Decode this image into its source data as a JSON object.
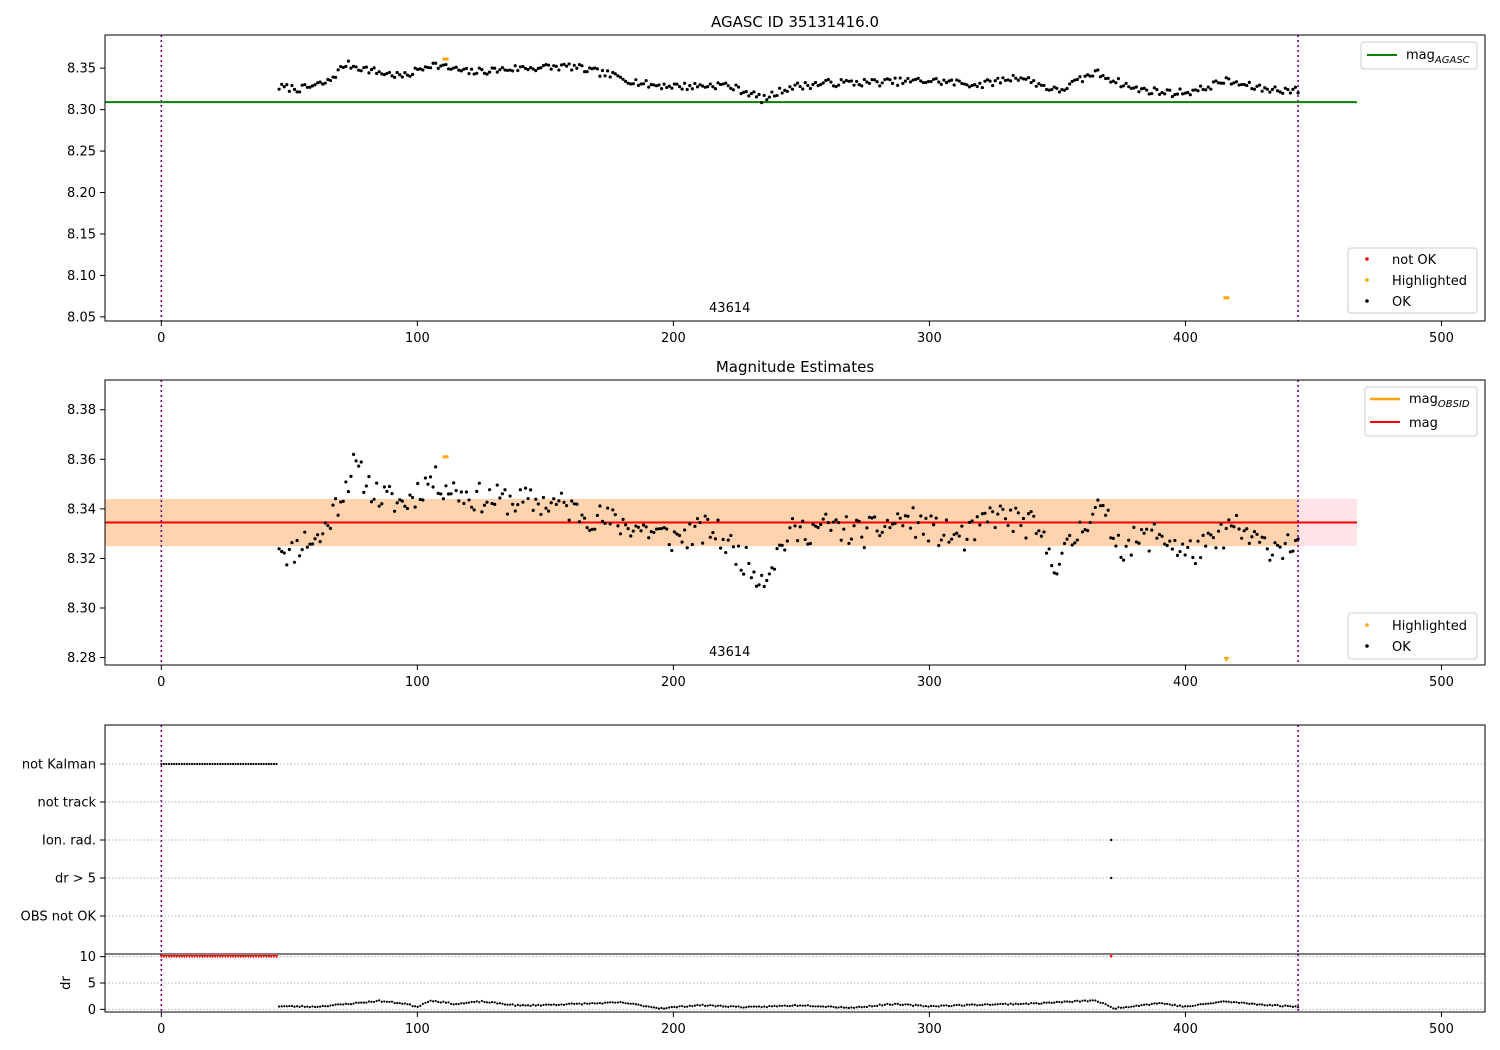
{
  "chart_data": [
    {
      "type": "scatter",
      "title": "AGASC ID 35131416.0",
      "xlim": [
        -22,
        517
      ],
      "ylim": [
        8.045,
        8.39
      ],
      "xticks": [
        "0",
        "100",
        "200",
        "300",
        "400",
        "500"
      ],
      "yticks": [
        "8.05",
        "8.10",
        "8.15",
        "8.20",
        "8.25",
        "8.30",
        "8.35"
      ],
      "obsid_label": "43614",
      "vlines": [
        0,
        444
      ],
      "mag_agasc": 8.309,
      "mag_agasc_xrange": [
        -22,
        467
      ],
      "legend_lines": [
        "mag_AGASC"
      ],
      "legend_line_main": "mag",
      "legend_line_sub": "AGASC",
      "legend_points": [
        "not OK",
        "Highlighted",
        "OK"
      ],
      "highlighted": [
        {
          "x": 111,
          "y": 8.361
        },
        {
          "x": 416,
          "y": 8.073
        }
      ],
      "ok_series": {
        "x_start": 46,
        "x_end": 444,
        "n": 398,
        "anchors": [
          [
            46,
            8.327
          ],
          [
            55,
            8.325
          ],
          [
            65,
            8.333
          ],
          [
            72,
            8.355
          ],
          [
            85,
            8.345
          ],
          [
            95,
            8.34
          ],
          [
            105,
            8.355
          ],
          [
            120,
            8.345
          ],
          [
            140,
            8.35
          ],
          [
            160,
            8.352
          ],
          [
            175,
            8.342
          ],
          [
            190,
            8.33
          ],
          [
            205,
            8.328
          ],
          [
            220,
            8.33
          ],
          [
            230,
            8.32
          ],
          [
            235,
            8.312
          ],
          [
            245,
            8.327
          ],
          [
            260,
            8.332
          ],
          [
            280,
            8.333
          ],
          [
            300,
            8.335
          ],
          [
            320,
            8.33
          ],
          [
            335,
            8.34
          ],
          [
            350,
            8.322
          ],
          [
            365,
            8.345
          ],
          [
            380,
            8.325
          ],
          [
            395,
            8.32
          ],
          [
            405,
            8.323
          ],
          [
            415,
            8.335
          ],
          [
            430,
            8.325
          ],
          [
            444,
            8.323
          ]
        ]
      }
    },
    {
      "type": "scatter",
      "title": "Magnitude Estimates",
      "xlim": [
        -22,
        517
      ],
      "ylim": [
        8.277,
        8.392
      ],
      "xticks": [
        "0",
        "100",
        "200",
        "300",
        "400",
        "500"
      ],
      "yticks": [
        "8.28",
        "8.30",
        "8.32",
        "8.34",
        "8.36",
        "8.38"
      ],
      "obsid_label": "43614",
      "vlines": [
        0,
        444
      ],
      "mag": 8.3345,
      "mag_band": [
        8.325,
        8.344
      ],
      "mag_obsid_band": [
        8.325,
        8.344
      ],
      "band_xrange": [
        -22,
        467
      ],
      "legend_lines": [
        "mag_OBSID",
        "mag"
      ],
      "legend_line_main": "mag",
      "legend_line_sub": "OBSID",
      "legend_line_mag": "mag",
      "legend_points": [
        "Highlighted",
        "OK"
      ],
      "highlighted": [
        {
          "x": 111,
          "y": 8.361
        }
      ],
      "ok_series": {
        "x_start": 46,
        "x_end": 444,
        "n": 398,
        "anchors": [
          [
            46,
            8.327
          ],
          [
            50,
            8.321
          ],
          [
            55,
            8.327
          ],
          [
            62,
            8.328
          ],
          [
            70,
            8.345
          ],
          [
            75,
            8.357
          ],
          [
            85,
            8.345
          ],
          [
            95,
            8.342
          ],
          [
            105,
            8.352
          ],
          [
            120,
            8.345
          ],
          [
            140,
            8.343
          ],
          [
            155,
            8.342
          ],
          [
            165,
            8.338
          ],
          [
            175,
            8.335
          ],
          [
            185,
            8.333
          ],
          [
            200,
            8.328
          ],
          [
            215,
            8.332
          ],
          [
            225,
            8.322
          ],
          [
            235,
            8.312
          ],
          [
            245,
            8.33
          ],
          [
            260,
            8.333
          ],
          [
            275,
            8.33
          ],
          [
            290,
            8.336
          ],
          [
            305,
            8.33
          ],
          [
            315,
            8.328
          ],
          [
            325,
            8.338
          ],
          [
            340,
            8.333
          ],
          [
            350,
            8.318
          ],
          [
            355,
            8.325
          ],
          [
            365,
            8.342
          ],
          [
            375,
            8.325
          ],
          [
            390,
            8.33
          ],
          [
            400,
            8.322
          ],
          [
            410,
            8.325
          ],
          [
            418,
            8.333
          ],
          [
            430,
            8.325
          ],
          [
            444,
            8.326
          ]
        ]
      }
    },
    {
      "type": "scatter",
      "xlim": [
        -22,
        517
      ],
      "xticks": [
        "0",
        "100",
        "200",
        "300",
        "400",
        "500"
      ],
      "vlines": [
        0,
        444
      ],
      "flag_labels": [
        "not Kalman",
        "not track",
        "Ion. rad.",
        "dr > 5",
        "OBS not OK"
      ],
      "not_kalman_range": [
        0,
        45
      ],
      "ion_rad_x": [
        371
      ],
      "dr_gt5_x": [
        371
      ]
    },
    {
      "type": "scatter",
      "ylabel": "dr",
      "xlim": [
        -22,
        517
      ],
      "ylim": [
        -0.5,
        10.5
      ],
      "yticks": [
        "0",
        "5",
        "10"
      ],
      "xticks": [
        "0",
        "100",
        "200",
        "300",
        "400",
        "500"
      ],
      "vlines": [
        0,
        444
      ],
      "not_ok_range": [
        0,
        45
      ],
      "not_ok_value": 10,
      "not_ok_extra_x": [
        371
      ],
      "dr_series": {
        "x_start": 46,
        "x_end": 444,
        "n": 398,
        "anchors": [
          [
            46,
            0.6
          ],
          [
            60,
            0.5
          ],
          [
            70,
            0.9
          ],
          [
            85,
            1.6
          ],
          [
            95,
            1.1
          ],
          [
            100,
            0.5
          ],
          [
            105,
            1.7
          ],
          [
            115,
            1.0
          ],
          [
            125,
            1.5
          ],
          [
            140,
            0.7
          ],
          [
            160,
            1.0
          ],
          [
            180,
            1.3
          ],
          [
            195,
            0.2
          ],
          [
            210,
            0.8
          ],
          [
            230,
            0.4
          ],
          [
            250,
            0.8
          ],
          [
            270,
            0.3
          ],
          [
            285,
            1.0
          ],
          [
            300,
            0.6
          ],
          [
            320,
            0.9
          ],
          [
            340,
            1.1
          ],
          [
            365,
            1.7
          ],
          [
            372,
            0.2
          ],
          [
            390,
            1.2
          ],
          [
            400,
            0.5
          ],
          [
            415,
            1.5
          ],
          [
            430,
            0.9
          ],
          [
            444,
            0.5
          ]
        ]
      }
    }
  ]
}
